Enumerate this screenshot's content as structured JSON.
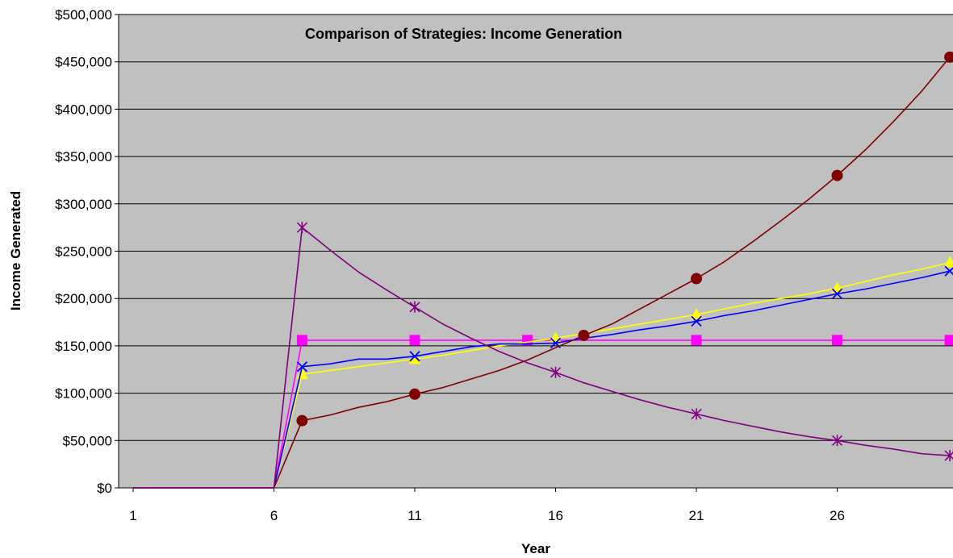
{
  "chart_data": {
    "type": "line",
    "title": "Comparison of Strategies: Income Generation",
    "xlabel": "Year",
    "ylabel": "Income Generated",
    "xlim": [
      1,
      30
    ],
    "ylim": [
      0,
      500000
    ],
    "x_ticks": [
      1,
      6,
      11,
      16,
      21,
      26
    ],
    "y_ticks": [
      0,
      50000,
      100000,
      150000,
      200000,
      250000,
      300000,
      350000,
      400000,
      450000,
      500000
    ],
    "y_tick_labels": [
      "$0",
      "$50,000",
      "$100,000",
      "$150,000",
      "$200,000",
      "$250,000",
      "$300,000",
      "$350,000",
      "$400,000",
      "$450,000",
      "$500,000"
    ],
    "grid": "horizontal",
    "legend": "none",
    "plot_background": "#c0c0c0",
    "series": [
      {
        "color": "#ff00ff",
        "marker": "square",
        "x": [
          1,
          2,
          3,
          4,
          5,
          6,
          7,
          8,
          9,
          10,
          11,
          12,
          13,
          14,
          15,
          16,
          17,
          18,
          19,
          20,
          21,
          22,
          23,
          24,
          25,
          26,
          27,
          28,
          29,
          30
        ],
        "values": [
          0,
          0,
          0,
          0,
          0,
          0,
          156000,
          156000,
          156000,
          156000,
          156000,
          156000,
          156000,
          156000,
          156000,
          156000,
          156000,
          156000,
          156000,
          156000,
          156000,
          156000,
          156000,
          156000,
          156000,
          156000,
          156000,
          156000,
          156000,
          156000
        ],
        "marker_x": [
          7,
          11,
          15,
          21,
          26,
          30
        ]
      },
      {
        "color": "#ffff00",
        "marker": "triangle",
        "x": [
          1,
          2,
          3,
          4,
          5,
          6,
          7,
          8,
          9,
          10,
          11,
          12,
          13,
          14,
          15,
          16,
          17,
          18,
          19,
          20,
          21,
          22,
          23,
          24,
          25,
          26,
          27,
          28,
          29,
          30
        ],
        "values": [
          0,
          0,
          0,
          0,
          0,
          0,
          120000,
          124000,
          128000,
          132000,
          136000,
          140000,
          145000,
          150000,
          154000,
          158000,
          163000,
          168000,
          173000,
          178000,
          183000,
          189000,
          195000,
          200000,
          205000,
          211000,
          218000,
          225000,
          231000,
          238000
        ],
        "marker_x": [
          7,
          11,
          16,
          21,
          26,
          30
        ]
      },
      {
        "color": "#0000ff",
        "marker": "x",
        "x": [
          1,
          2,
          3,
          4,
          5,
          6,
          7,
          8,
          9,
          10,
          11,
          12,
          13,
          14,
          15,
          16,
          17,
          18,
          19,
          20,
          21,
          22,
          23,
          24,
          25,
          26,
          27,
          28,
          29,
          30
        ],
        "values": [
          0,
          0,
          0,
          0,
          0,
          0,
          128000,
          131000,
          136000,
          136000,
          139000,
          144000,
          149000,
          152000,
          152000,
          153000,
          158000,
          162000,
          167000,
          171000,
          176000,
          182000,
          187000,
          193000,
          199000,
          205000,
          210000,
          216000,
          222000,
          229000
        ],
        "marker_x": [
          7,
          11,
          16,
          21,
          26,
          30
        ]
      },
      {
        "color": "#800000",
        "marker": "circle",
        "x": [
          1,
          2,
          3,
          4,
          5,
          6,
          7,
          8,
          9,
          10,
          11,
          12,
          13,
          14,
          15,
          16,
          17,
          18,
          19,
          20,
          21,
          22,
          23,
          24,
          25,
          26,
          27,
          28,
          29,
          30
        ],
        "values": [
          0,
          0,
          0,
          0,
          0,
          0,
          71000,
          77000,
          85000,
          91000,
          99000,
          106000,
          115000,
          124000,
          135000,
          148000,
          161000,
          173000,
          189000,
          205000,
          221000,
          239000,
          260000,
          282000,
          305000,
          330000,
          357000,
          387000,
          419000,
          455000
        ],
        "marker_x": [
          7,
          11,
          17,
          21,
          26,
          30
        ]
      },
      {
        "color": "#800080",
        "marker": "asterisk",
        "x": [
          1,
          2,
          3,
          4,
          5,
          6,
          7,
          8,
          9,
          10,
          11,
          12,
          13,
          14,
          15,
          16,
          17,
          18,
          19,
          20,
          21,
          22,
          23,
          24,
          25,
          26,
          27,
          28,
          29,
          30
        ],
        "values": [
          0,
          0,
          0,
          0,
          0,
          0,
          275000,
          251000,
          228000,
          209000,
          191000,
          173000,
          158000,
          144000,
          132000,
          122000,
          111000,
          102000,
          93000,
          85000,
          78000,
          71000,
          65000,
          59000,
          54000,
          50000,
          45000,
          41000,
          36000,
          34000
        ],
        "marker_x": [
          7,
          11,
          16,
          21,
          26,
          30
        ]
      }
    ]
  }
}
